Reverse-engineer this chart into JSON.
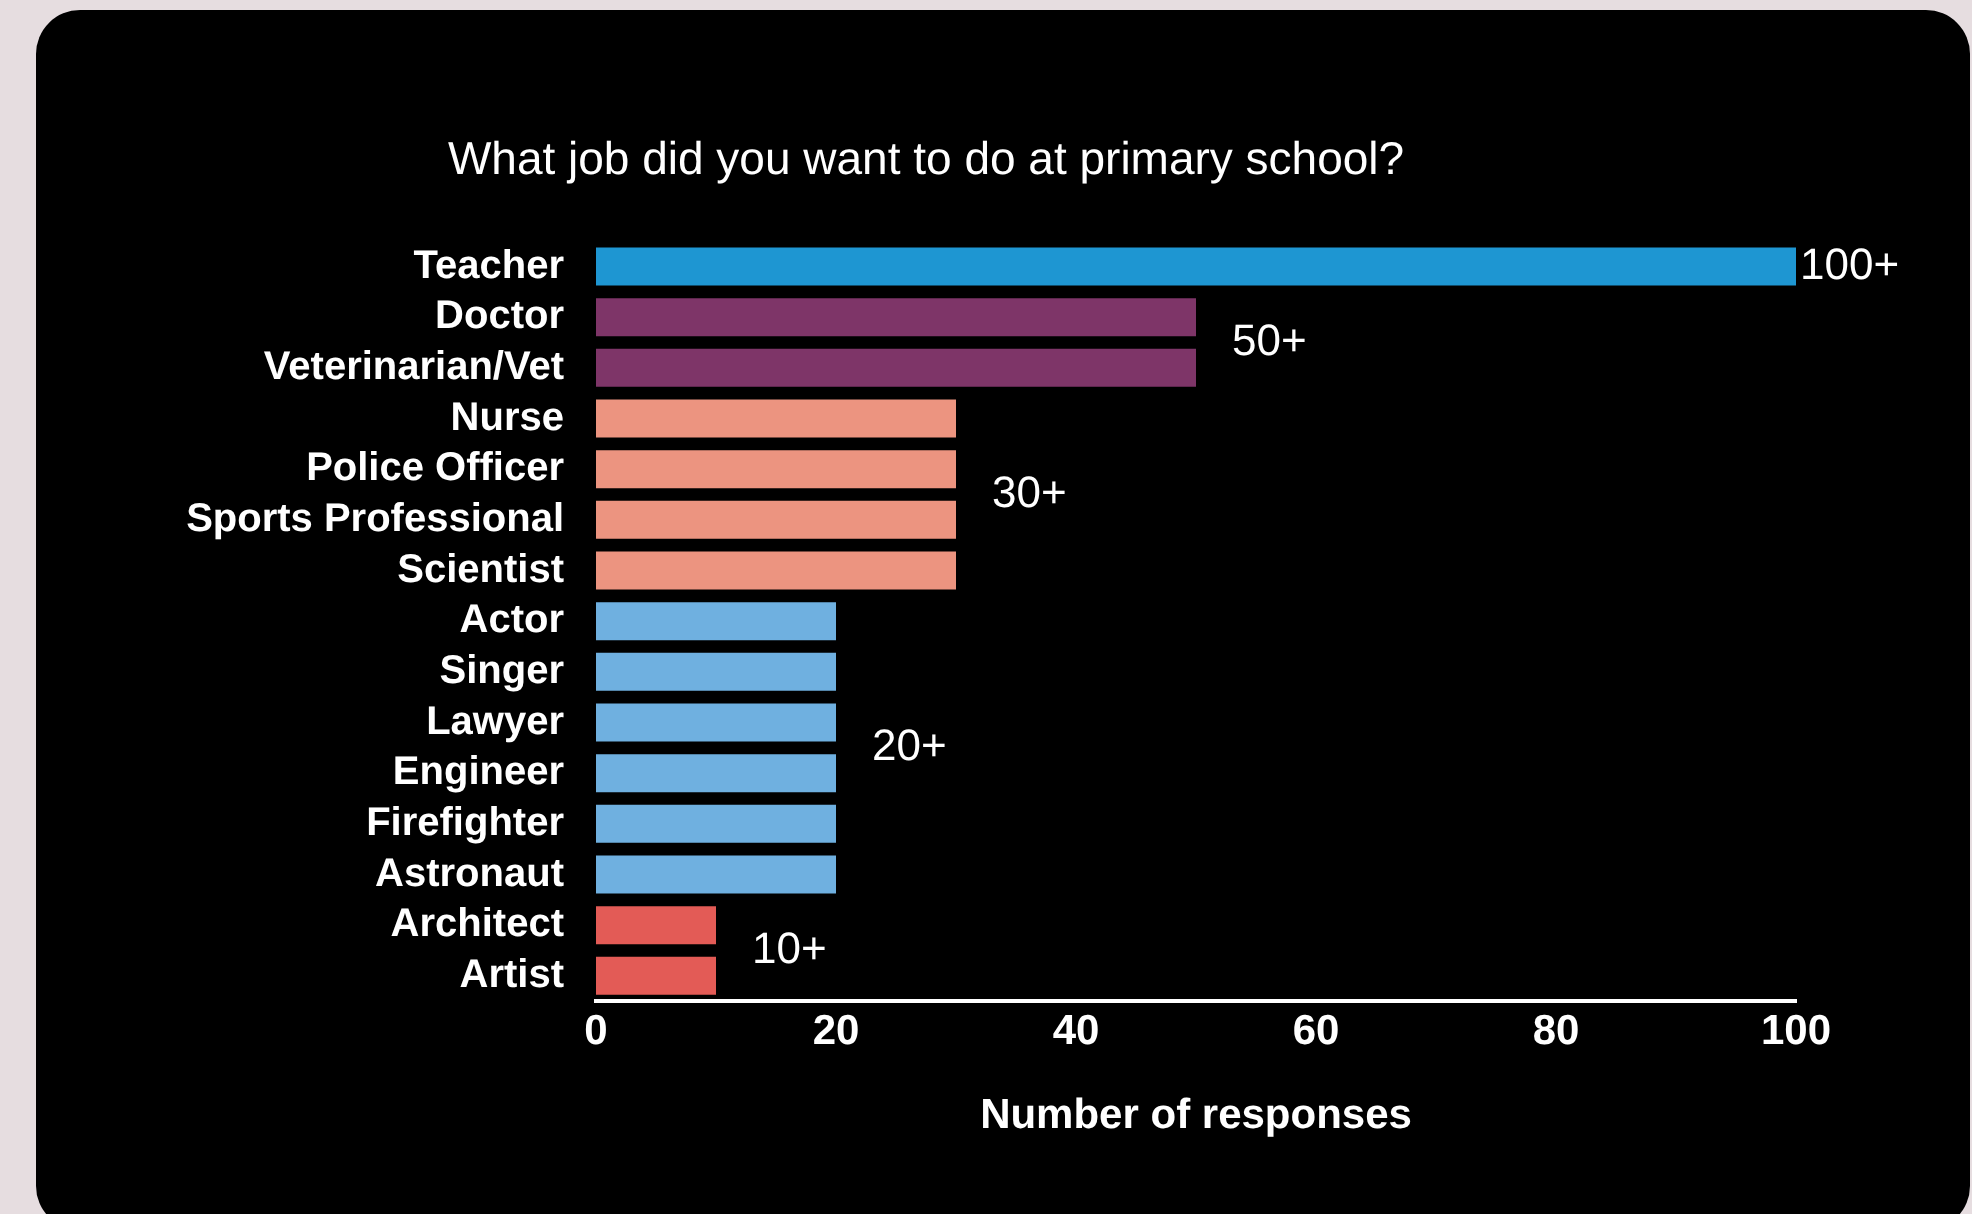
{
  "chart_data": {
    "type": "bar",
    "orientation": "horizontal",
    "title": "What job did you want to do at primary school?",
    "xlabel": "Number of responses",
    "categories": [
      "Teacher",
      "Doctor",
      "Veterinarian/Vet",
      "Nurse",
      "Police Officer",
      "Sports Professional",
      "Scientist",
      "Actor",
      "Singer",
      "Lawyer",
      "Engineer",
      "Firefighter",
      "Astronaut",
      "Architect",
      "Artist"
    ],
    "values": [
      100,
      50,
      50,
      30,
      30,
      30,
      30,
      20,
      20,
      20,
      20,
      20,
      20,
      10,
      10
    ],
    "colors": [
      "#1e96d2",
      "#7e3568",
      "#7e3568",
      "#ec9480",
      "#ec9480",
      "#ec9480",
      "#ec9480",
      "#6fb0e0",
      "#6fb0e0",
      "#6fb0e0",
      "#6fb0e0",
      "#6fb0e0",
      "#6fb0e0",
      "#e35b56",
      "#e35b56"
    ],
    "xlim": [
      0,
      100
    ],
    "xticks": [
      0,
      20,
      40,
      60,
      80,
      100
    ],
    "grid": false,
    "legend": false,
    "annotations": [
      "100+",
      "50+",
      "30+",
      "20+",
      "10+"
    ]
  }
}
